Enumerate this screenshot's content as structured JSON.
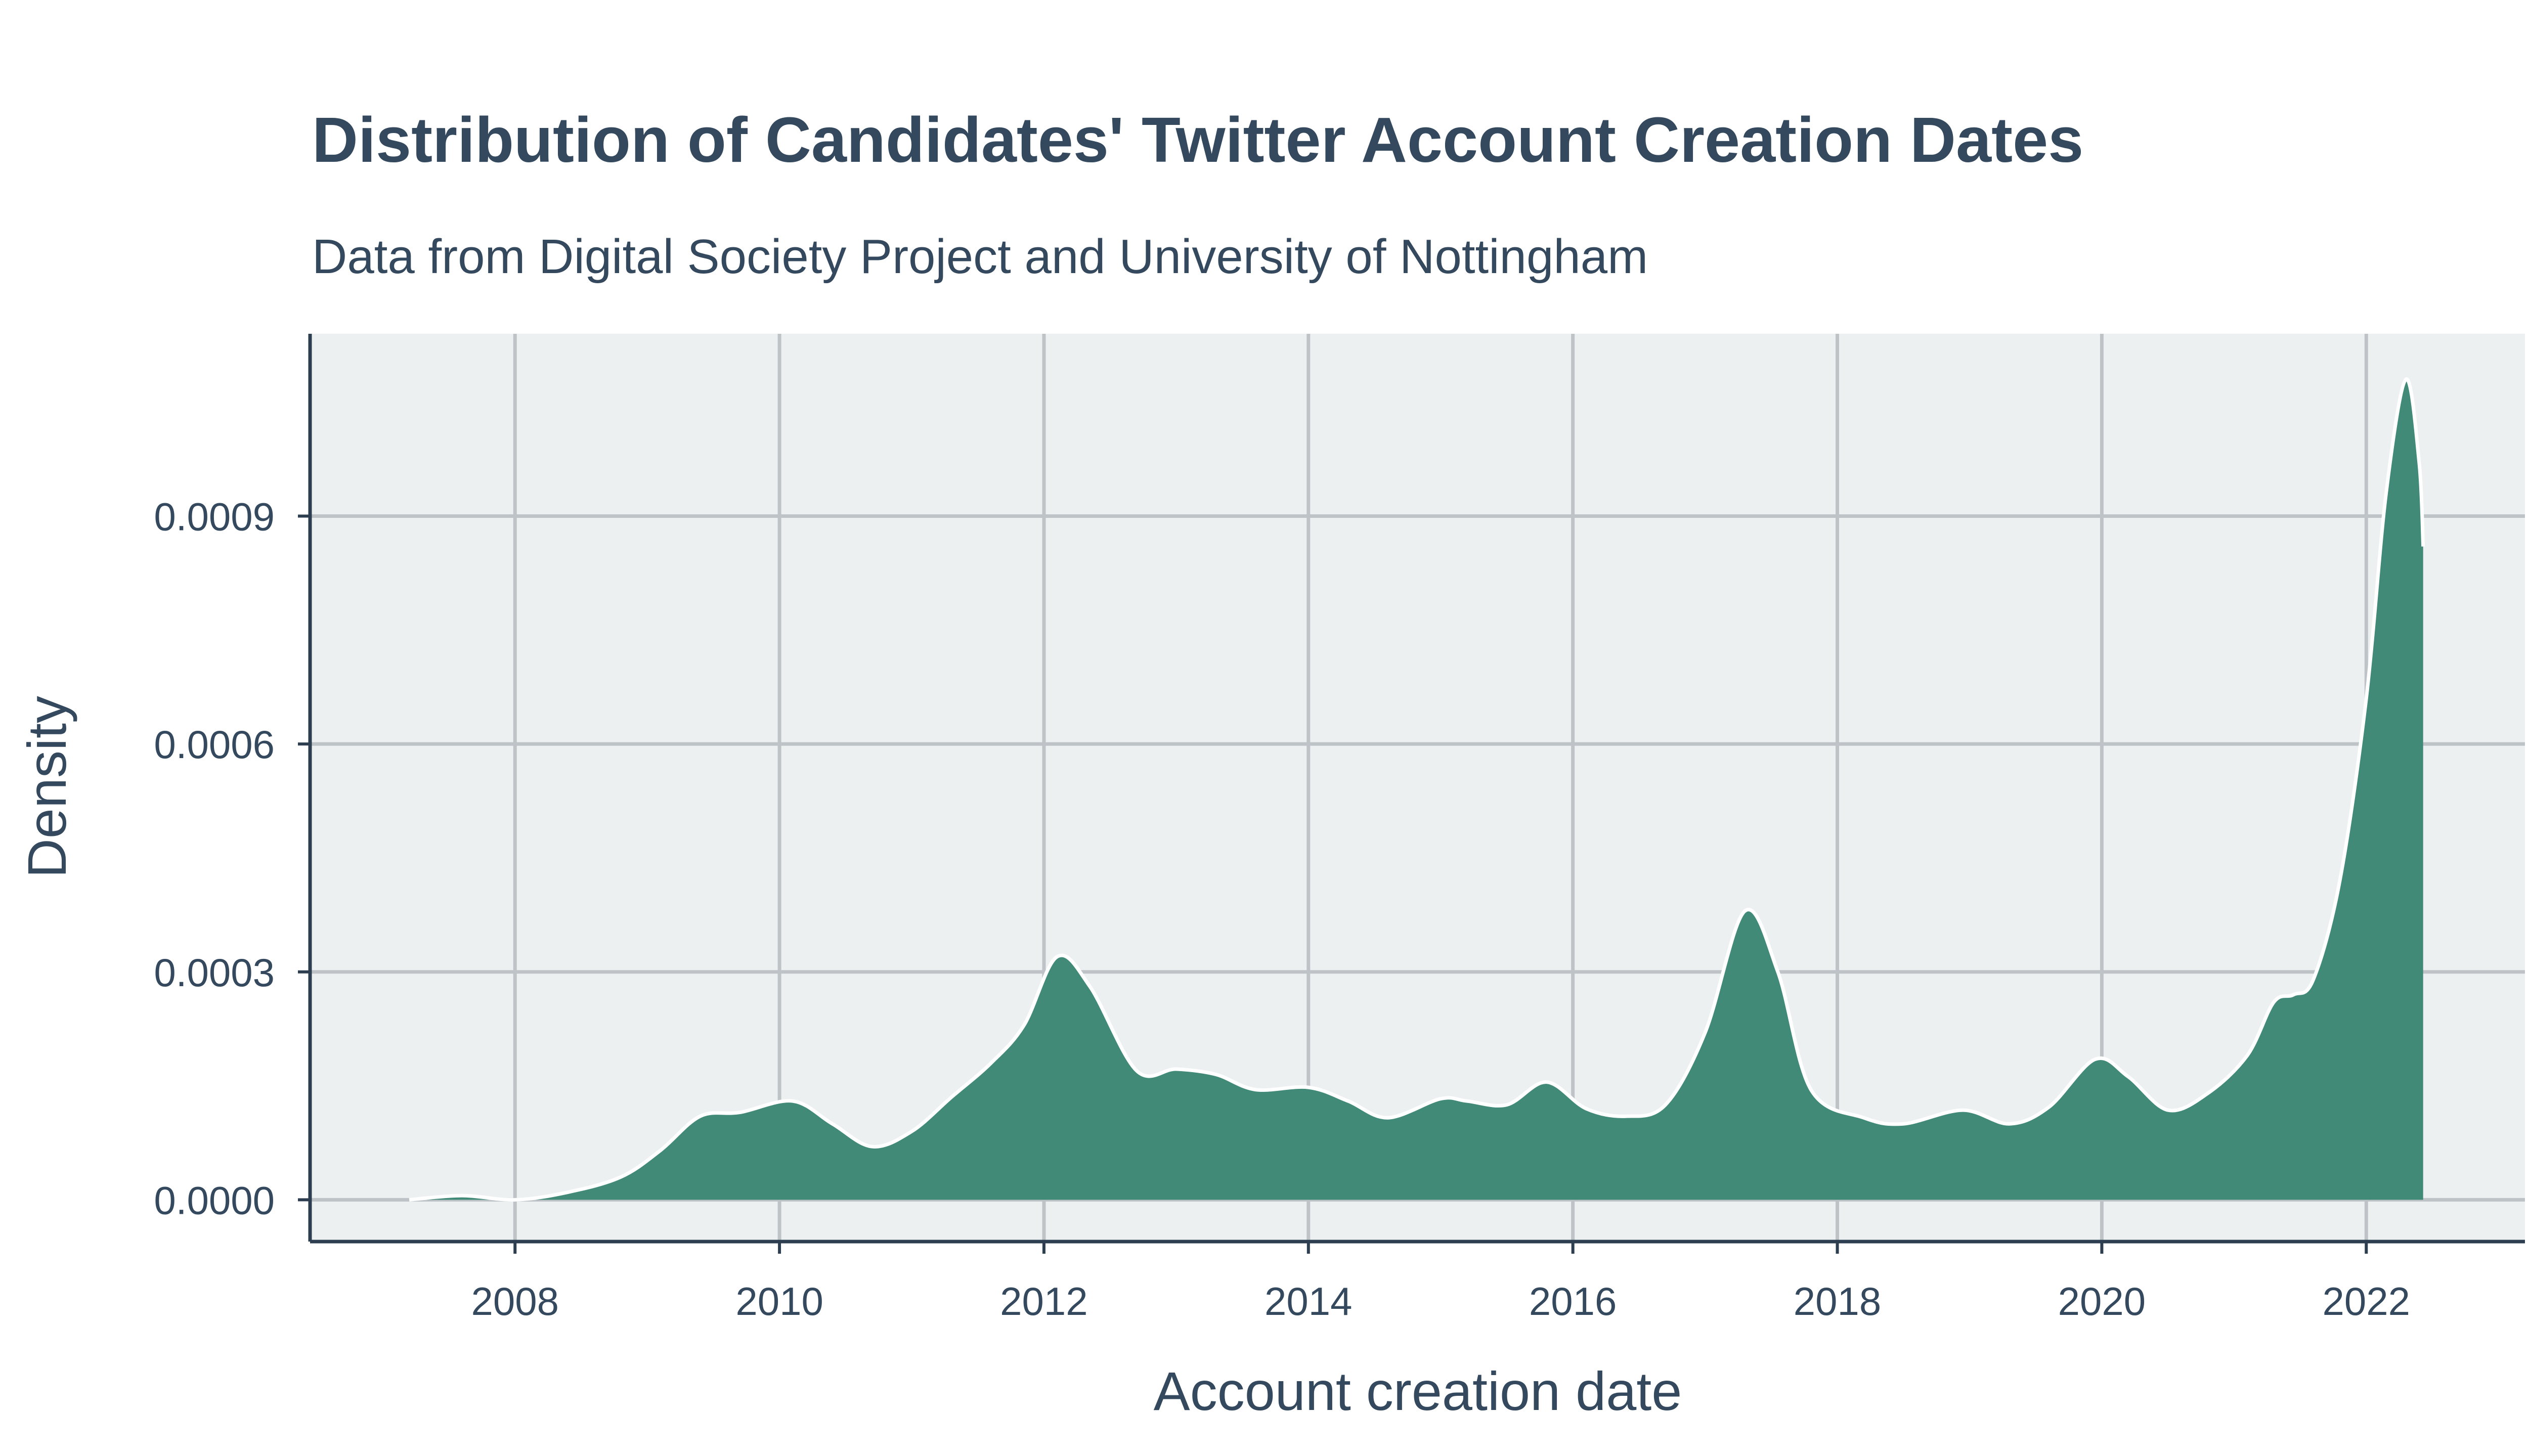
{
  "chart_data": {
    "type": "area",
    "title": "Distribution of Candidates' Twitter Account Creation Dates",
    "subtitle": "Data from Digital Society Project and University of Nottingham",
    "xlabel": "Account creation date",
    "ylabel": "Density",
    "xlim": [
      2006.45,
      2023.2
    ],
    "ylim": [
      -5.5e-05,
      0.00114
    ],
    "x_ticks": [
      "2008",
      "2010",
      "2012",
      "2014",
      "2016",
      "2018",
      "2020",
      "2022"
    ],
    "y_ticks": [
      "0.0000",
      "0.0003",
      "0.0006",
      "0.0009"
    ],
    "grid": true,
    "legend": "none",
    "colors": {
      "fill": "#418a78",
      "outline": "#ffffff",
      "panel": "#ecf0f1",
      "grid": "#bdc3c7",
      "axis": "#2c3e50",
      "text": "#34495e"
    },
    "series": [
      {
        "x": [
          2007.2,
          2007.6,
          2008.0,
          2008.4,
          2008.8,
          2009.1,
          2009.4,
          2009.7,
          2010.1,
          2010.4,
          2010.7,
          2011.0,
          2011.3,
          2011.6,
          2011.85,
          2012.1,
          2012.35,
          2012.7,
          2013.0,
          2013.3,
          2013.6,
          2014.0,
          2014.3,
          2014.6,
          2015.0,
          2015.2,
          2015.5,
          2015.8,
          2016.1,
          2016.4,
          2016.7,
          2017.0,
          2017.3,
          2017.55,
          2017.8,
          2018.2,
          2018.5,
          2018.95,
          2019.3,
          2019.6,
          2019.95,
          2020.2,
          2020.5,
          2020.8,
          2021.1,
          2021.3,
          2021.45,
          2021.6,
          2021.8,
          2022.0,
          2022.15,
          2022.3,
          2022.4,
          2022.43
        ],
        "y": [
          0.0,
          5.5e-06,
          0.0,
          1e-05,
          3e-05,
          6.5e-05,
          0.00011,
          0.000115,
          0.00013,
          0.0001,
          7e-05,
          9e-05,
          0.000135,
          0.00018,
          0.00023,
          0.00032,
          0.00028,
          0.00017,
          0.000172,
          0.000165,
          0.000145,
          0.000148,
          0.00013,
          0.000108,
          0.000133,
          0.00013,
          0.000125,
          0.000155,
          0.00012,
          0.00011,
          0.000125,
          0.00022,
          0.00038,
          0.0003,
          0.000145,
          0.000108,
          0.0001,
          0.000118,
          0.0001,
          0.000122,
          0.000185,
          0.000162,
          0.000118,
          0.00014,
          0.00019,
          0.00026,
          0.00027,
          0.00029,
          0.00042,
          0.00066,
          0.00093,
          0.00108,
          0.00097,
          0.00086
        ]
      }
    ]
  }
}
